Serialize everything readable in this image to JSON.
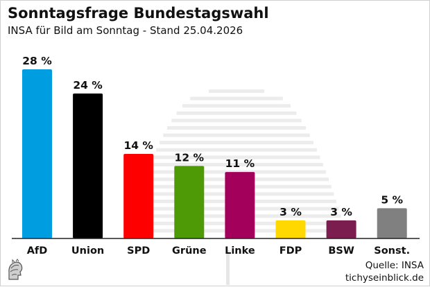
{
  "title": "Sonntagsfrage Bundestagswahl",
  "subtitle": "INSA für Bild am Sonntag - Stand 25.04.2026",
  "source_line1": "Quelle: INSA",
  "source_line2": "tichyseinblick.de",
  "chart_data": {
    "type": "bar",
    "categories": [
      "AfD",
      "Union",
      "SPD",
      "Grüne",
      "Linke",
      "FDP",
      "BSW",
      "Sonst."
    ],
    "values": [
      28,
      24,
      14,
      12,
      11,
      3,
      3,
      5
    ],
    "value_labels": [
      "28 %",
      "24 %",
      "14 %",
      "12 %",
      "11 %",
      "3 %",
      "3 %",
      "5 %"
    ],
    "colors": [
      "#009EE0",
      "#000000",
      "#FF0000",
      "#4E9A06",
      "#A3005C",
      "#FFD800",
      "#7B1E4F",
      "#808080"
    ],
    "ylim": [
      0,
      28
    ],
    "grid": false,
    "xlabel": "",
    "ylabel": ""
  },
  "logo_icon": "figure-head-logo-icon",
  "background_icon": "reichstag-dome-icon"
}
